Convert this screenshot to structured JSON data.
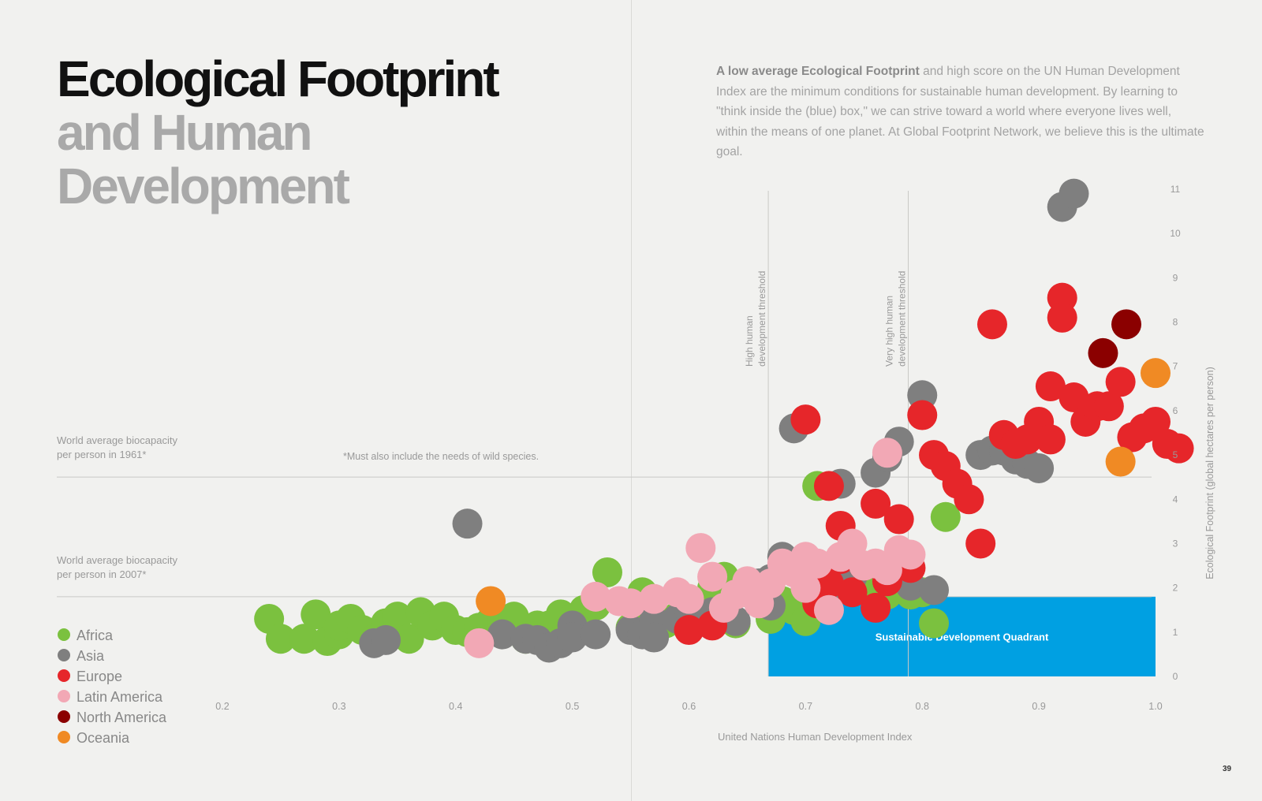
{
  "title": {
    "line1": "Ecological Footprint",
    "line2": "and Human",
    "line3": "Development"
  },
  "intro": {
    "lead": "A low average Ecological Footprint",
    "body": "and high score on the UN Human Development Index are the minimum conditions for sustainable human development. By learning to \"think inside the (blue) box,\" we can strive toward a world where everyone lives well, within the means of one planet. At Global Footprint Network, we believe this is the ultimate goal."
  },
  "page_number": "39",
  "chart_data": {
    "type": "scatter",
    "xlabel": "United Nations Human Development Index",
    "ylabel": "Ecological Footprint (global hectares per person)",
    "xlim": [
      0.2,
      1.0
    ],
    "ylim": [
      0,
      11
    ],
    "x_ticks": [
      "0.2",
      "0.3",
      "0.4",
      "0.5",
      "0.6",
      "0.7",
      "0.8",
      "0.9",
      "1.0"
    ],
    "y_ticks": [
      "0",
      "1",
      "2",
      "3",
      "4",
      "5",
      "6",
      "7",
      "8",
      "9",
      "10",
      "11"
    ],
    "grid": false,
    "legend_position": "bottom-left",
    "reference_lines": [
      {
        "orientation": "horizontal",
        "y": 4.5,
        "label_line1": "World average biocapacity",
        "label_line2": "per person in 1961*"
      },
      {
        "orientation": "horizontal",
        "y": 1.8,
        "label_line1": "World average biocapacity",
        "label_line2": "per person in 2007*"
      },
      {
        "orientation": "vertical",
        "x": 0.668,
        "label_line1": "High human",
        "label_line2": "development threshold"
      },
      {
        "orientation": "vertical",
        "x": 0.788,
        "label_line1": "Very high human",
        "label_line2": "development threshold"
      }
    ],
    "footnote": "*Must also include the needs of wild species.",
    "quadrant": {
      "label": "Sustainable Development Quadrant",
      "x": [
        0.668,
        1.0
      ],
      "y": [
        0,
        1.8
      ],
      "color": "#00a0e2"
    },
    "series": [
      {
        "name": "Africa",
        "color": "#7bc13f",
        "points": [
          [
            0.24,
            1.3
          ],
          [
            0.25,
            0.85
          ],
          [
            0.27,
            0.85
          ],
          [
            0.28,
            1.4
          ],
          [
            0.29,
            0.8
          ],
          [
            0.3,
            0.95
          ],
          [
            0.3,
            1.15
          ],
          [
            0.31,
            1.3
          ],
          [
            0.32,
            1.05
          ],
          [
            0.33,
            0.85
          ],
          [
            0.34,
            1.2
          ],
          [
            0.35,
            1.35
          ],
          [
            0.36,
            0.85
          ],
          [
            0.37,
            1.45
          ],
          [
            0.38,
            1.15
          ],
          [
            0.39,
            1.35
          ],
          [
            0.4,
            1.05
          ],
          [
            0.41,
            1.0
          ],
          [
            0.42,
            1.1
          ],
          [
            0.43,
            1.25
          ],
          [
            0.44,
            1.25
          ],
          [
            0.45,
            1.35
          ],
          [
            0.46,
            0.85
          ],
          [
            0.47,
            1.15
          ],
          [
            0.48,
            1.15
          ],
          [
            0.49,
            1.4
          ],
          [
            0.5,
            1.3
          ],
          [
            0.51,
            1.5
          ],
          [
            0.52,
            1.6
          ],
          [
            0.53,
            2.35
          ],
          [
            0.55,
            1.1
          ],
          [
            0.56,
            1.9
          ],
          [
            0.57,
            1.3
          ],
          [
            0.58,
            1.2
          ],
          [
            0.59,
            1.35
          ],
          [
            0.6,
            1.6
          ],
          [
            0.61,
            1.25
          ],
          [
            0.62,
            2.0
          ],
          [
            0.63,
            2.25
          ],
          [
            0.64,
            1.2
          ],
          [
            0.66,
            1.95
          ],
          [
            0.67,
            1.3
          ],
          [
            0.68,
            1.7
          ],
          [
            0.69,
            1.5
          ],
          [
            0.7,
            1.25
          ],
          [
            0.71,
            4.3
          ],
          [
            0.73,
            2.15
          ],
          [
            0.75,
            2.15
          ],
          [
            0.76,
            1.9
          ],
          [
            0.77,
            1.85
          ],
          [
            0.79,
            1.85
          ],
          [
            0.8,
            1.9
          ],
          [
            0.81,
            1.2
          ],
          [
            0.82,
            3.6
          ]
        ]
      },
      {
        "name": "Asia",
        "color": "#7f7f7f",
        "points": [
          [
            0.33,
            0.75
          ],
          [
            0.34,
            0.82
          ],
          [
            0.41,
            3.45
          ],
          [
            0.44,
            0.95
          ],
          [
            0.46,
            0.85
          ],
          [
            0.47,
            0.82
          ],
          [
            0.48,
            0.65
          ],
          [
            0.49,
            0.75
          ],
          [
            0.5,
            1.15
          ],
          [
            0.5,
            0.88
          ],
          [
            0.52,
            0.95
          ],
          [
            0.55,
            1.05
          ],
          [
            0.56,
            0.95
          ],
          [
            0.57,
            1.25
          ],
          [
            0.57,
            0.88
          ],
          [
            0.59,
            1.3
          ],
          [
            0.6,
            1.5
          ],
          [
            0.61,
            1.35
          ],
          [
            0.62,
            1.45
          ],
          [
            0.63,
            1.55
          ],
          [
            0.64,
            1.25
          ],
          [
            0.65,
            1.9
          ],
          [
            0.66,
            2.1
          ],
          [
            0.67,
            2.2
          ],
          [
            0.67,
            1.6
          ],
          [
            0.68,
            2.7
          ],
          [
            0.69,
            5.6
          ],
          [
            0.7,
            2.6
          ],
          [
            0.71,
            2.2
          ],
          [
            0.72,
            1.85
          ],
          [
            0.73,
            4.35
          ],
          [
            0.74,
            2.25
          ],
          [
            0.76,
            4.6
          ],
          [
            0.77,
            4.95
          ],
          [
            0.78,
            5.3
          ],
          [
            0.79,
            2.05
          ],
          [
            0.8,
            6.35
          ],
          [
            0.81,
            1.95
          ],
          [
            0.85,
            5.0
          ],
          [
            0.86,
            5.1
          ],
          [
            0.87,
            5.1
          ],
          [
            0.88,
            4.9
          ],
          [
            0.89,
            4.8
          ],
          [
            0.9,
            4.7
          ],
          [
            0.92,
            10.6
          ],
          [
            0.93,
            10.9
          ]
        ]
      },
      {
        "name": "Europe",
        "color": "#e6262a",
        "points": [
          [
            0.6,
            1.05
          ],
          [
            0.62,
            1.15
          ],
          [
            0.7,
            5.8
          ],
          [
            0.71,
            1.65
          ],
          [
            0.72,
            2.1
          ],
          [
            0.72,
            4.3
          ],
          [
            0.73,
            2.65
          ],
          [
            0.73,
            3.4
          ],
          [
            0.74,
            1.9
          ],
          [
            0.75,
            2.5
          ],
          [
            0.76,
            3.9
          ],
          [
            0.76,
            1.55
          ],
          [
            0.77,
            2.15
          ],
          [
            0.78,
            3.55
          ],
          [
            0.79,
            2.45
          ],
          [
            0.8,
            5.9
          ],
          [
            0.81,
            5.0
          ],
          [
            0.82,
            4.75
          ],
          [
            0.83,
            4.35
          ],
          [
            0.84,
            4.0
          ],
          [
            0.85,
            3.0
          ],
          [
            0.86,
            7.95
          ],
          [
            0.87,
            5.45
          ],
          [
            0.88,
            5.25
          ],
          [
            0.89,
            5.35
          ],
          [
            0.9,
            5.75
          ],
          [
            0.91,
            6.55
          ],
          [
            0.91,
            5.35
          ],
          [
            0.92,
            8.55
          ],
          [
            0.92,
            8.1
          ],
          [
            0.93,
            6.3
          ],
          [
            0.94,
            5.75
          ],
          [
            0.95,
            6.1
          ],
          [
            0.96,
            6.1
          ],
          [
            0.97,
            6.65
          ],
          [
            0.98,
            5.4
          ],
          [
            0.99,
            5.6
          ],
          [
            1.0,
            5.75
          ],
          [
            1.01,
            5.25
          ],
          [
            1.02,
            5.15
          ]
        ]
      },
      {
        "name": "Latin America",
        "color": "#f2a8b5",
        "points": [
          [
            0.42,
            0.75
          ],
          [
            0.52,
            1.8
          ],
          [
            0.54,
            1.7
          ],
          [
            0.55,
            1.65
          ],
          [
            0.57,
            1.75
          ],
          [
            0.59,
            1.9
          ],
          [
            0.6,
            1.75
          ],
          [
            0.61,
            2.9
          ],
          [
            0.62,
            2.25
          ],
          [
            0.63,
            1.55
          ],
          [
            0.64,
            1.85
          ],
          [
            0.65,
            2.15
          ],
          [
            0.66,
            1.65
          ],
          [
            0.67,
            2.1
          ],
          [
            0.68,
            2.55
          ],
          [
            0.69,
            2.35
          ],
          [
            0.7,
            2.7
          ],
          [
            0.7,
            2.0
          ],
          [
            0.71,
            2.55
          ],
          [
            0.72,
            1.5
          ],
          [
            0.73,
            2.7
          ],
          [
            0.74,
            3.0
          ],
          [
            0.75,
            2.5
          ],
          [
            0.76,
            2.55
          ],
          [
            0.77,
            2.4
          ],
          [
            0.77,
            5.05
          ],
          [
            0.78,
            2.85
          ],
          [
            0.79,
            2.75
          ]
        ]
      },
      {
        "name": "North America",
        "color": "#8b0000",
        "points": [
          [
            0.955,
            7.3
          ],
          [
            0.975,
            7.95
          ]
        ]
      },
      {
        "name": "Oceania",
        "color": "#f08a24",
        "points": [
          [
            0.43,
            1.7
          ],
          [
            0.97,
            4.85
          ],
          [
            1.0,
            6.85
          ]
        ]
      }
    ]
  }
}
